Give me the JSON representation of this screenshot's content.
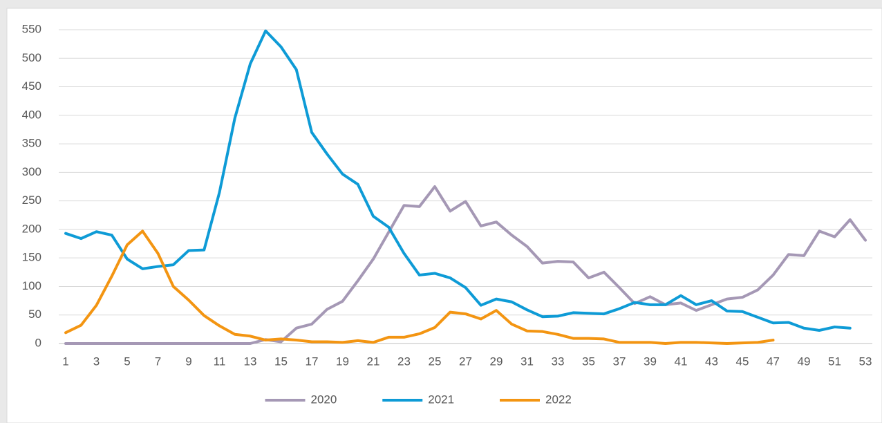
{
  "chart_data": {
    "type": "line",
    "x": [
      1,
      2,
      3,
      4,
      5,
      6,
      7,
      8,
      9,
      10,
      11,
      12,
      13,
      14,
      15,
      16,
      17,
      18,
      19,
      20,
      21,
      22,
      23,
      24,
      25,
      26,
      27,
      28,
      29,
      30,
      31,
      32,
      33,
      34,
      35,
      36,
      37,
      38,
      39,
      40,
      41,
      42,
      43,
      44,
      45,
      46,
      47,
      48,
      49,
      50,
      51,
      52,
      53
    ],
    "xlim": [
      1,
      53
    ],
    "xticks": [
      1,
      3,
      5,
      7,
      9,
      11,
      13,
      15,
      17,
      19,
      21,
      23,
      25,
      27,
      29,
      31,
      33,
      35,
      37,
      39,
      41,
      43,
      45,
      47,
      49,
      51,
      53
    ],
    "ylim": [
      0,
      550
    ],
    "yticks": [
      0,
      50,
      100,
      150,
      200,
      250,
      300,
      350,
      400,
      450,
      500,
      550
    ],
    "grid": true,
    "legend": "bottom",
    "series": [
      {
        "name": "2020",
        "color": "#a598b5",
        "values": [
          0,
          0,
          0,
          0,
          0,
          0,
          0,
          0,
          0,
          0,
          0,
          0,
          0,
          7,
          3,
          27,
          34,
          60,
          74,
          110,
          148,
          195,
          242,
          240,
          275,
          232,
          249,
          206,
          213,
          190,
          170,
          141,
          144,
          143,
          115,
          125,
          98,
          70,
          82,
          68,
          71,
          58,
          68,
          78,
          81,
          94,
          120,
          156,
          154,
          197,
          187,
          217,
          181
        ]
      },
      {
        "name": "2021",
        "color": "#0e9bd6",
        "values": [
          193,
          184,
          196,
          190,
          148,
          131,
          135,
          138,
          163,
          164,
          265,
          395,
          490,
          548,
          520,
          480,
          370,
          332,
          297,
          279,
          223,
          204,
          158,
          120,
          123,
          115,
          98,
          67,
          78,
          73,
          59,
          47,
          48,
          54,
          53,
          52,
          61,
          72,
          68,
          68,
          84,
          68,
          75,
          57,
          56,
          46,
          36,
          37,
          27,
          23,
          29,
          27,
          null
        ]
      },
      {
        "name": "2022",
        "color": "#f39512",
        "values": [
          19,
          32,
          67,
          118,
          173,
          197,
          158,
          100,
          76,
          49,
          31,
          16,
          13,
          6,
          8,
          6,
          3,
          3,
          2,
          5,
          2,
          11,
          11,
          17,
          28,
          55,
          52,
          43,
          58,
          34,
          22,
          21,
          16,
          9,
          9,
          8,
          2,
          2,
          2,
          0,
          2,
          2,
          1,
          0,
          1,
          2,
          6,
          null,
          null,
          null,
          null,
          null,
          null
        ]
      }
    ]
  }
}
